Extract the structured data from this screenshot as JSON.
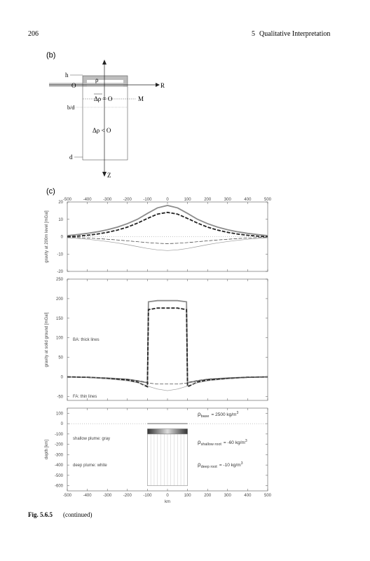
{
  "header": {
    "page_number": "206",
    "chapter_number": "5",
    "chapter_title": "Qualitative Interpretation"
  },
  "panel_b": {
    "label": "(b)",
    "h": "h",
    "rho": "ρ",
    "origin": "O",
    "r_axis": "R",
    "delta_zero": "Δρ = O",
    "m": "M",
    "bd": "b/d",
    "delta_neg": "Δρ < O",
    "d": "d",
    "z_axis": "Z"
  },
  "panel_c": {
    "label": "(c)"
  },
  "chart_data": [
    {
      "type": "line",
      "ylabel": "gravity at 200m level [mGal]",
      "xlim": [
        -500,
        500
      ],
      "ylim": [
        -20,
        20
      ],
      "xticks": [
        -500,
        -400,
        -300,
        -200,
        -100,
        0,
        100,
        200,
        300,
        400,
        500
      ],
      "yticks": [
        -20,
        -10,
        0,
        10,
        20
      ],
      "zero_line": true,
      "xtick_side": "top",
      "series": [
        {
          "color": "#8c8c8c",
          "style": "solid",
          "width": 1.8,
          "x": [
            -500,
            -450,
            -400,
            -350,
            -300,
            -250,
            -200,
            -150,
            -100,
            -50,
            0,
            50,
            100,
            150,
            200,
            250,
            300,
            350,
            400,
            450,
            500
          ],
          "values": [
            0.6,
            1.2,
            1.9,
            2.8,
            4,
            5.5,
            7.5,
            10,
            13.4,
            16.6,
            18,
            16.6,
            13.4,
            10,
            7.5,
            5.5,
            4,
            2.8,
            1.9,
            1.2,
            0.6
          ]
        },
        {
          "color": "#222222",
          "style": "dashed",
          "width": 1.8,
          "x": [
            -500,
            -450,
            -400,
            -350,
            -300,
            -250,
            -200,
            -150,
            -100,
            -50,
            0,
            50,
            100,
            150,
            200,
            250,
            300,
            350,
            400,
            450,
            500
          ],
          "values": [
            0,
            0.3,
            0.8,
            1.5,
            2.5,
            3.8,
            5.5,
            7.8,
            10.5,
            13,
            14,
            13,
            10.5,
            7.8,
            5.5,
            3.8,
            2.5,
            1.5,
            0.8,
            0.3,
            0
          ]
        },
        {
          "color": "#9a9a9a",
          "style": "solid",
          "width": 0.7,
          "x": [
            -500,
            -450,
            -400,
            -350,
            -300,
            -250,
            -200,
            -150,
            -100,
            -50,
            0,
            50,
            100,
            150,
            200,
            250,
            300,
            350,
            400,
            450,
            500
          ],
          "values": [
            -0.6,
            -1,
            -1.5,
            -2.1,
            -2.8,
            -3.6,
            -4.6,
            -5.7,
            -6.8,
            -7.6,
            -8,
            -7.6,
            -6.8,
            -5.7,
            -4.6,
            -3.6,
            -2.8,
            -2.1,
            -1.5,
            -1,
            -0.6
          ]
        },
        {
          "color": "#333333",
          "style": "dashed",
          "width": 0.7,
          "x": [
            -500,
            -450,
            -400,
            -350,
            -300,
            -250,
            -200,
            -150,
            -100,
            -50,
            0,
            50,
            100,
            150,
            200,
            250,
            300,
            350,
            400,
            450,
            500
          ],
          "values": [
            -0.3,
            -0.5,
            -0.8,
            -1.1,
            -1.5,
            -1.9,
            -2.4,
            -2.9,
            -3.4,
            -3.8,
            -4,
            -3.8,
            -3.4,
            -2.9,
            -2.4,
            -1.9,
            -1.5,
            -1.1,
            -0.8,
            -0.5,
            -0.3
          ]
        }
      ]
    },
    {
      "type": "line",
      "ylabel": "gravity at solid ground [mGal]",
      "xlim": [
        -500,
        500
      ],
      "ylim": [
        -60,
        250
      ],
      "xticks": [
        -500,
        -400,
        -300,
        -200,
        -100,
        0,
        100,
        200,
        300,
        400,
        500
      ],
      "yticks": [
        -50,
        0,
        50,
        100,
        150,
        200,
        250
      ],
      "zero_line": false,
      "annotations": [
        "BA: thick lines",
        "FA: thin lines"
      ],
      "series": [
        {
          "color": "#8c8c8c",
          "style": "solid",
          "width": 1.8,
          "x": [
            -500,
            -400,
            -300,
            -200,
            -150,
            -100,
            -95,
            -50,
            0,
            50,
            95,
            100,
            150,
            200,
            300,
            400,
            500
          ],
          "values": [
            0,
            -1,
            -3,
            -6,
            -10,
            -15,
            192,
            195,
            195,
            195,
            192,
            -15,
            -10,
            -6,
            -3,
            -1,
            0
          ]
        },
        {
          "color": "#222222",
          "style": "dashed",
          "width": 1.8,
          "x": [
            -500,
            -400,
            -300,
            -200,
            -150,
            -100,
            -95,
            -50,
            0,
            50,
            95,
            100,
            150,
            200,
            300,
            400,
            500
          ],
          "values": [
            0,
            -1,
            -4,
            -8,
            -13,
            -25,
            172,
            176,
            176,
            176,
            172,
            -25,
            -13,
            -8,
            -4,
            -1,
            0
          ]
        },
        {
          "color": "#9a9a9a",
          "style": "solid",
          "width": 0.7,
          "x": [
            -500,
            -400,
            -300,
            -200,
            -150,
            -100,
            -95,
            -50,
            0,
            50,
            95,
            100,
            150,
            200,
            300,
            400,
            500
          ],
          "values": [
            0,
            -2,
            -5,
            -10,
            -15,
            -22,
            -24,
            -31,
            -35,
            -31,
            -24,
            -22,
            -15,
            -10,
            -5,
            -2,
            0
          ]
        },
        {
          "color": "#333333",
          "style": "dashed",
          "width": 0.7,
          "x": [
            -500,
            -400,
            -300,
            -200,
            -150,
            -100,
            -95,
            -50,
            0,
            50,
            95,
            100,
            150,
            200,
            300,
            400,
            500
          ],
          "values": [
            0,
            -1,
            -3,
            -6,
            -9,
            -14,
            -16,
            -18,
            -18,
            -18,
            -16,
            -14,
            -9,
            -6,
            -3,
            -1,
            0
          ]
        }
      ]
    },
    {
      "type": "line",
      "ylabel": "depth [km]",
      "xlabel": "km",
      "xlim": [
        -500,
        500
      ],
      "ylim": [
        -650,
        150
      ],
      "xticks": [
        -500,
        -400,
        -300,
        -200,
        -100,
        0,
        100,
        200,
        300,
        400,
        500
      ],
      "yticks": [
        100,
        0,
        -100,
        -200,
        -300,
        -400,
        -500,
        -600
      ],
      "zero_line": true,
      "xtick_side": "bottom",
      "annotations": [
        "shallow plume: gray",
        "deep plume: white"
      ],
      "density_labels": [
        {
          "symbol": "ρ",
          "sub": "base",
          "text": "= 2500 kg/m",
          "sup": "3"
        },
        {
          "symbol": "ρ",
          "sub": "shallow root",
          "text": "= -60 kg/m",
          "sup": "3"
        },
        {
          "symbol": "ρ",
          "sub": "deep root",
          "text": "= -10 kg/m",
          "sup": "3"
        }
      ],
      "rects": [
        {
          "x": [
            -100,
            100
          ],
          "y": [
            -100,
            -600
          ],
          "fill": "striped"
        },
        {
          "x": [
            -100,
            100
          ],
          "y": [
            -50,
            -100
          ],
          "fill": "gradient"
        }
      ],
      "series": [
        {
          "color": "#999999",
          "style": "solid",
          "width": 1.5,
          "x": [
            -100,
            100
          ],
          "values": [
            0,
            0
          ]
        }
      ]
    }
  ],
  "caption": {
    "label": "Fig. 5.6.5",
    "text": "(continued)"
  }
}
